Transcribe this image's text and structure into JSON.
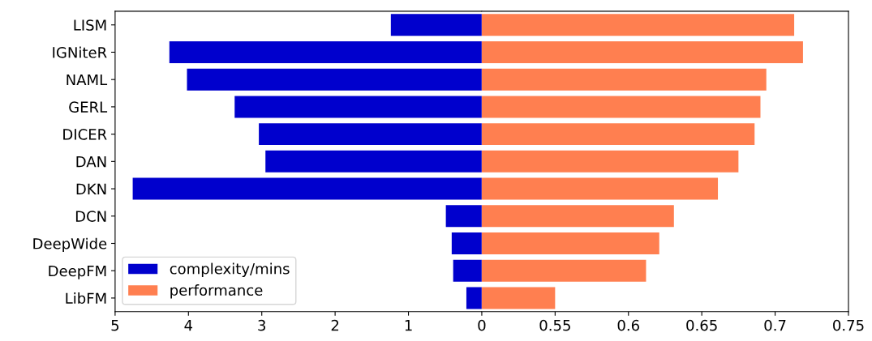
{
  "chart_data": [
    {
      "type": "bar",
      "orientation": "horizontal",
      "categories": [
        "LISM",
        "IGNiteR",
        "NAML",
        "GERL",
        "DICER",
        "DAN",
        "DKN",
        "DCN",
        "DeepWide",
        "DeepFM",
        "LibFM"
      ],
      "series": [
        {
          "name": "complexity/mins",
          "color": "#0000cd",
          "values": [
            1.24,
            4.26,
            4.02,
            3.37,
            3.04,
            2.95,
            4.76,
            0.49,
            0.41,
            0.39,
            0.21
          ]
        }
      ],
      "xlim": [
        5,
        0
      ],
      "xticks": [
        5,
        4,
        3,
        2,
        1,
        0
      ],
      "legend": "bottom left",
      "grid": false
    },
    {
      "type": "bar",
      "orientation": "horizontal",
      "series": [
        {
          "name": "performance",
          "color": "#ff7f50",
          "values": [
            0.713,
            0.719,
            0.694,
            0.69,
            0.686,
            0.675,
            0.661,
            0.631,
            0.621,
            0.612,
            0.55
          ]
        }
      ],
      "xlim": [
        0.5,
        0.75
      ],
      "xticks": [
        0.55,
        0.6,
        0.65,
        0.7,
        0.75
      ],
      "tick_labels": "x",
      "grid": false
    }
  ]
}
